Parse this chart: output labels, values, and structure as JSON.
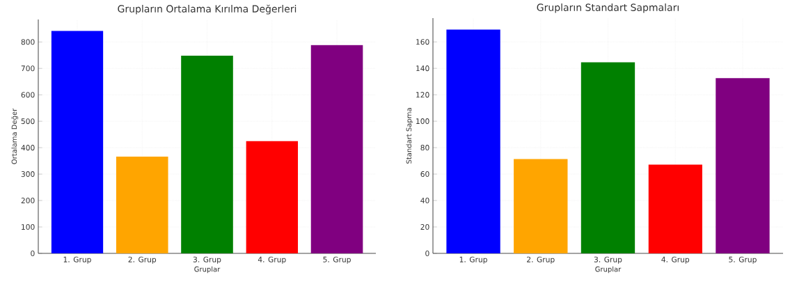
{
  "chart_data": [
    {
      "type": "bar",
      "title": "Grupların Ortalama Kırılma Değerleri",
      "xlabel": "Gruplar",
      "ylabel": "Ortalama Değer",
      "categories": [
        "1. Grup",
        "2. Grup",
        "3. Grup",
        "4. Grup",
        "5. Grup"
      ],
      "values": [
        842,
        366,
        748,
        425,
        788
      ],
      "colors": [
        "#0000ff",
        "#ffa500",
        "#008000",
        "#ff0000",
        "#800080"
      ],
      "ylim": [
        0,
        885
      ],
      "yticks": [
        0,
        100,
        200,
        300,
        400,
        500,
        600,
        700,
        800
      ],
      "grid": true
    },
    {
      "type": "bar",
      "title": "Grupların Standart Sapmaları",
      "xlabel": "Gruplar",
      "ylabel": "Standart Sapma",
      "categories": [
        "1. Grup",
        "2. Grup",
        "3. Grup",
        "4. Grup",
        "5. Grup"
      ],
      "values": [
        169.3,
        71.3,
        144.6,
        67.1,
        132.6
      ],
      "colors": [
        "#0000ff",
        "#ffa500",
        "#008000",
        "#ff0000",
        "#800080"
      ],
      "ylim": [
        0,
        178
      ],
      "yticks": [
        0,
        20,
        40,
        60,
        80,
        100,
        120,
        140,
        160
      ],
      "grid": true
    }
  ]
}
